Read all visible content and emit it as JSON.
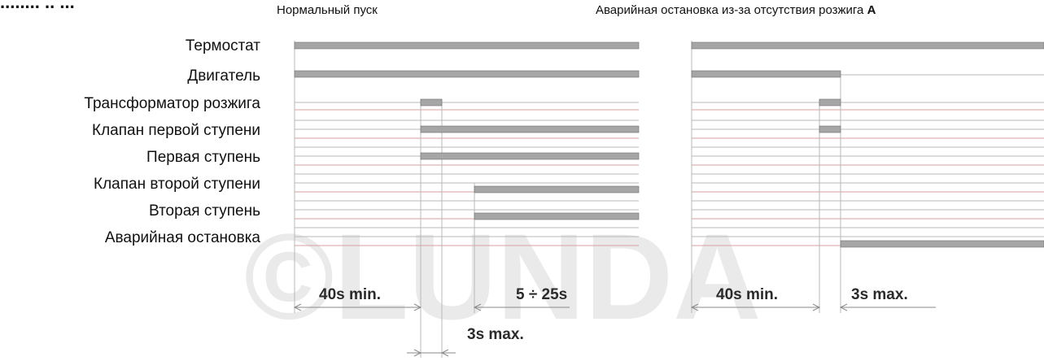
{
  "header": {
    "cropped_title": "........ .. ...",
    "panel_normal_title": "Нормальный пуск",
    "panel_fault_title_text": "Аварийная остановка из-за отсутствия розжига",
    "panel_fault_title_marker": "A"
  },
  "signals": [
    "Термостат",
    "Двигатель",
    "Трансформатор розжига",
    "Клапан первой ступени",
    "Первая ступень",
    "Клапан второй ступени",
    "Вторая ступень",
    "Аварийная остановка"
  ],
  "timings_normal": {
    "pre_purge": "40s min.",
    "second_stage_delay": "5 ÷ 25s",
    "safety_time": "3s max."
  },
  "timings_fault": {
    "pre_purge": "40s min.",
    "safety_time": "3s max."
  },
  "watermark": "©LUNDA",
  "colors": {
    "bar": "#a6a6a6",
    "bar_edge": "#6e6e6e",
    "line": "#b8b8b8",
    "red_line": "#d9a0a0",
    "marker": "#6e6e6e"
  }
}
